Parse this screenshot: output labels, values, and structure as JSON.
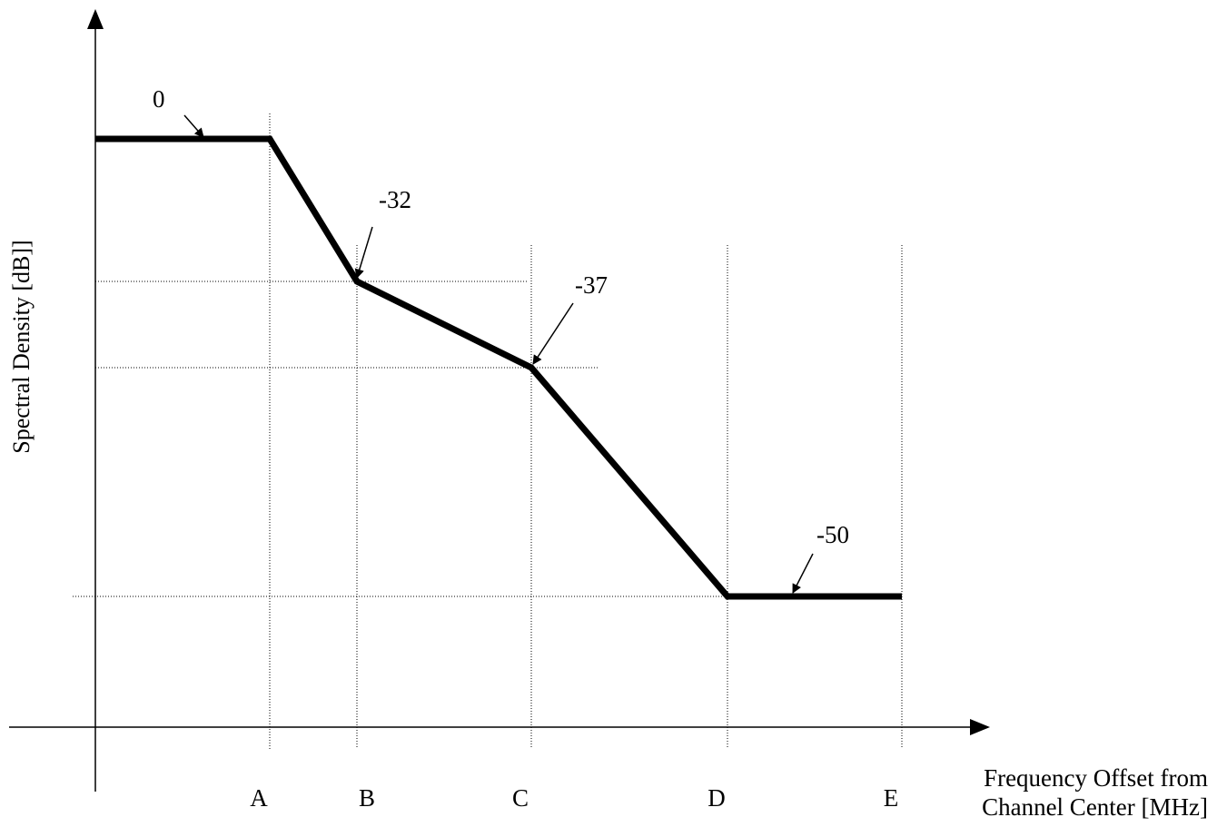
{
  "chart_data": {
    "type": "line",
    "xlabel": "Frequency Offset from Channel Center [MHz]",
    "xlabel_lines": [
      "Frequency Offset from",
      "Channel Center [MHz]"
    ],
    "ylabel": "Spectral Density [dB]]",
    "categories": [
      "A",
      "B",
      "C",
      "D",
      "E"
    ],
    "points": [
      {
        "x": "0",
        "y": 0
      },
      {
        "x": "A",
        "y": 0
      },
      {
        "x": "B",
        "y": -32
      },
      {
        "x": "C",
        "y": -37
      },
      {
        "x": "D",
        "y": -50
      },
      {
        "x": "E",
        "y": -50
      }
    ],
    "annotations": [
      "0",
      "-32",
      "-37",
      "-50"
    ],
    "grid": true,
    "legend": "none"
  }
}
